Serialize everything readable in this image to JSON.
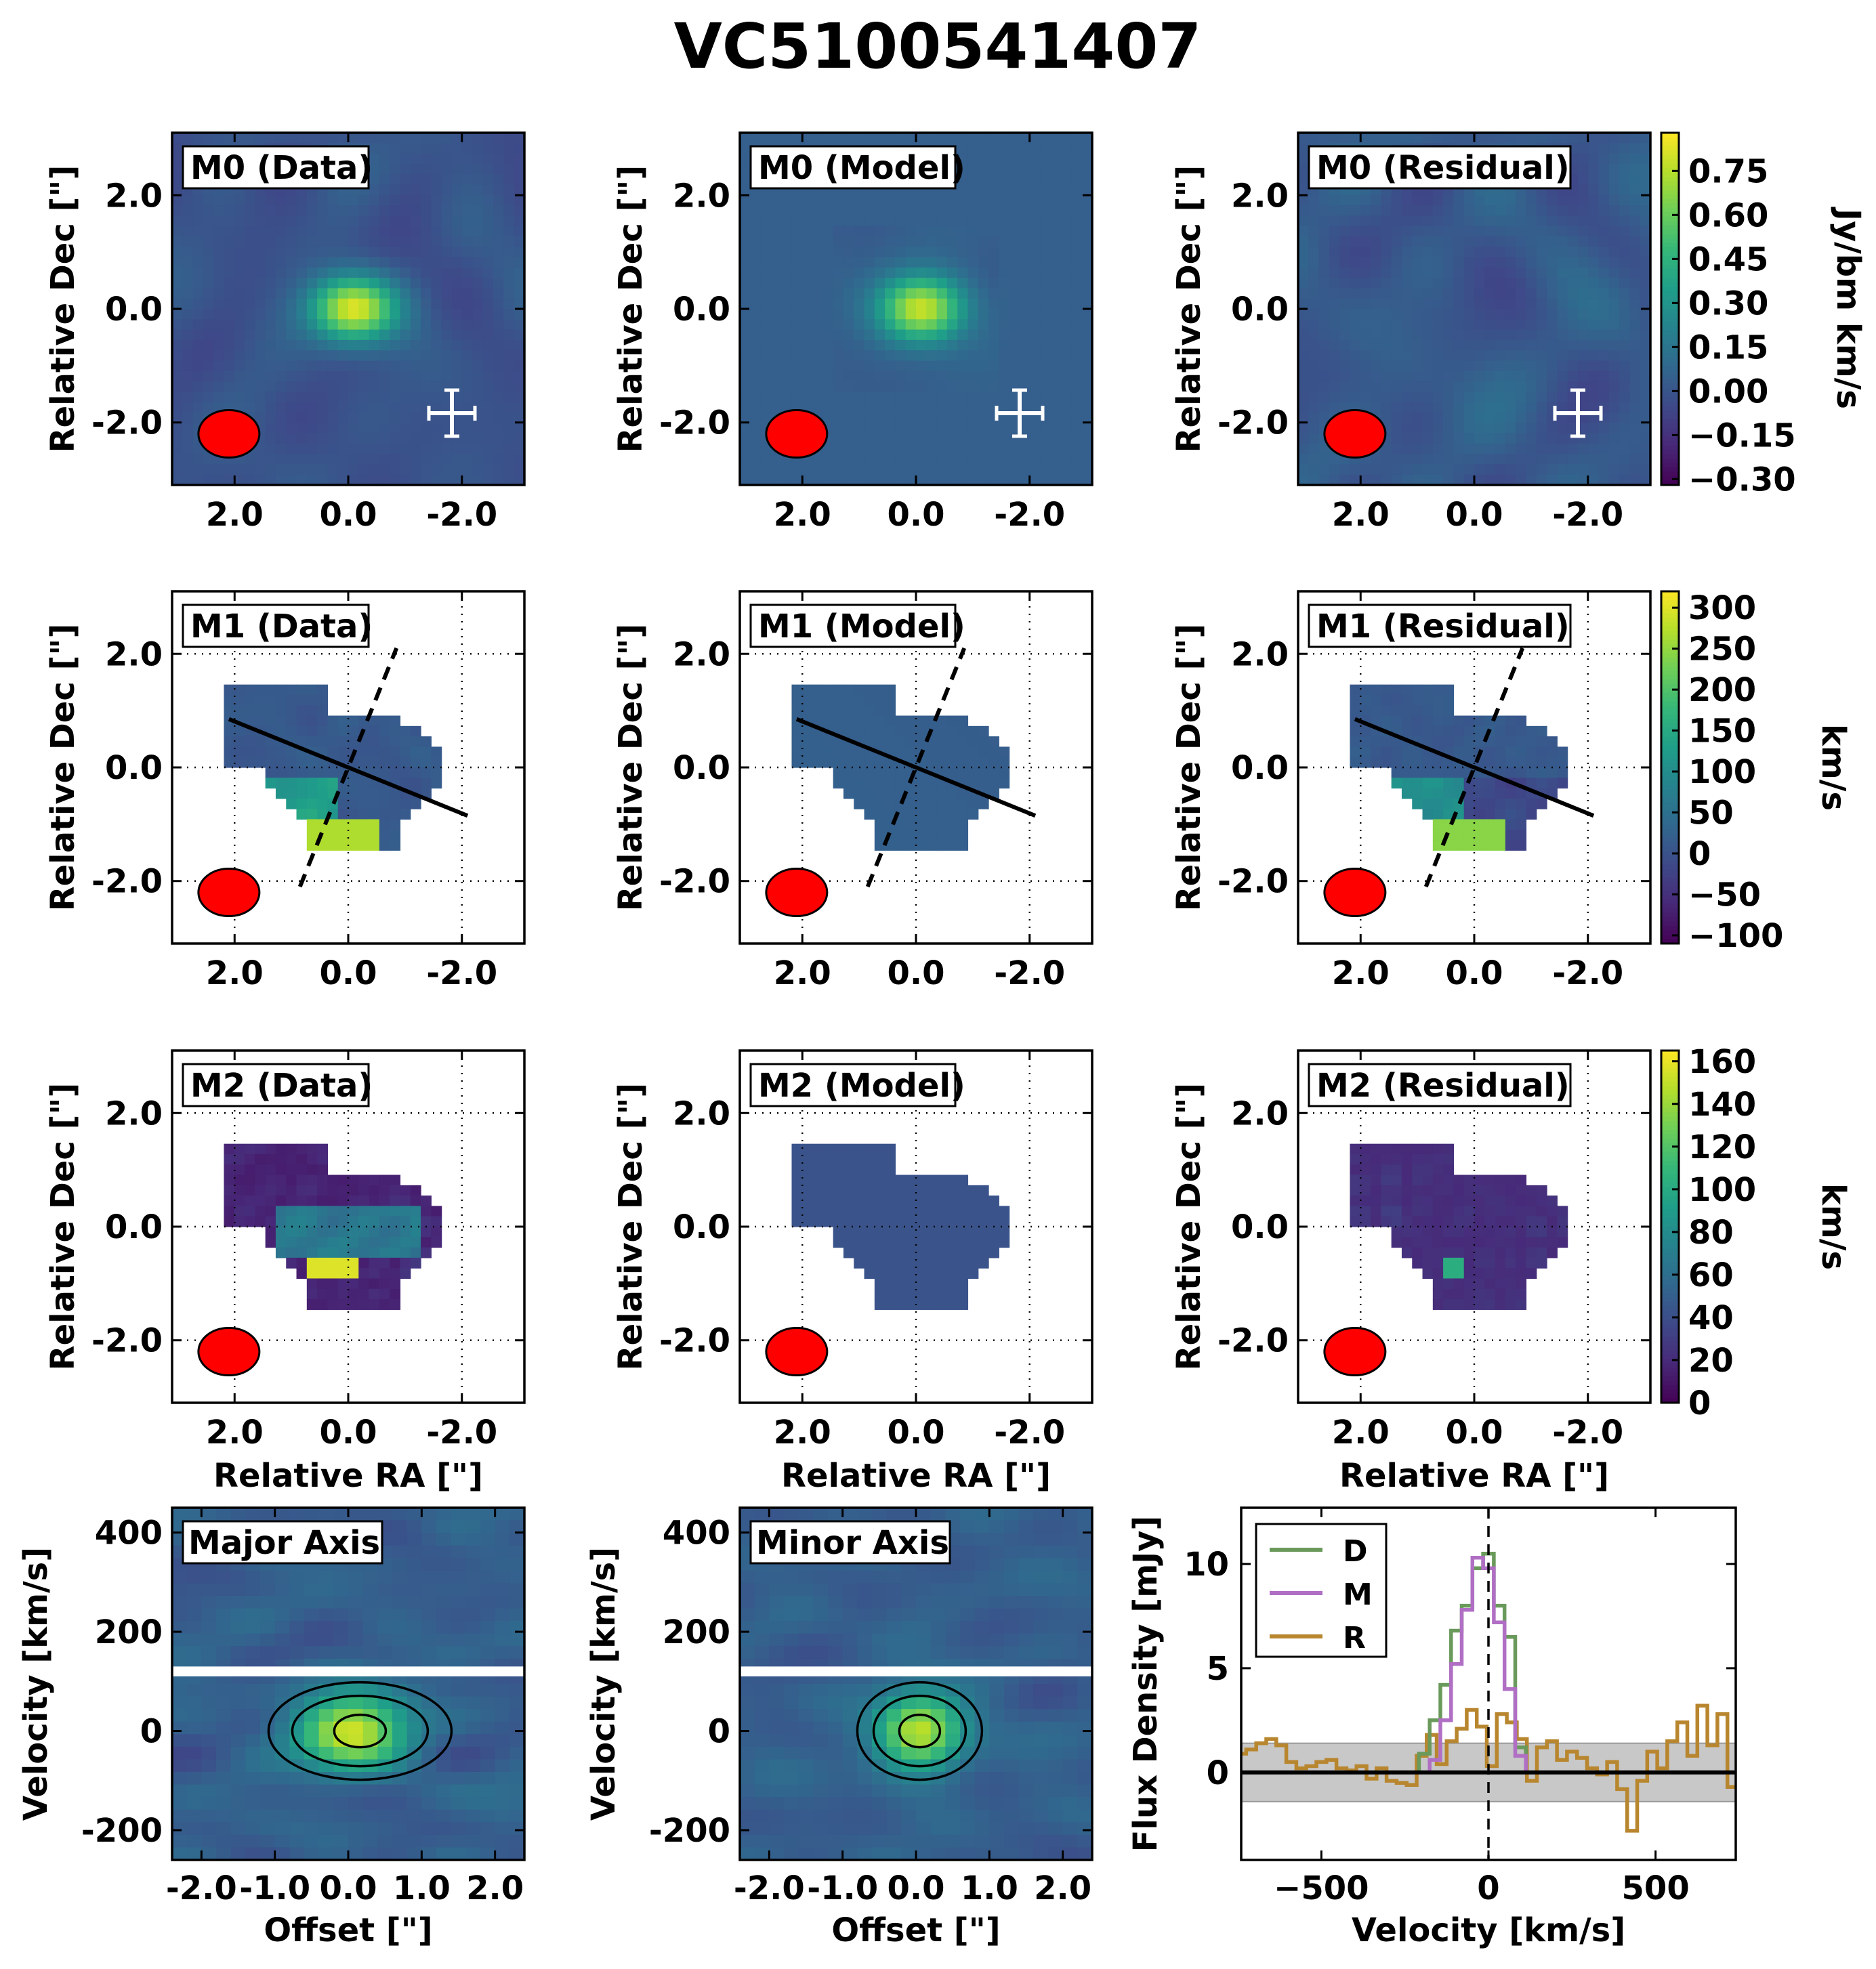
{
  "title": "VC5100541407",
  "colors": {
    "viridis": [
      "#440154",
      "#482878",
      "#3e4989",
      "#31688e",
      "#26828e",
      "#1f9e89",
      "#35b779",
      "#6ece58",
      "#b5de2b",
      "#fde725"
    ],
    "beam": "#ff0000",
    "white_band": "#ffffff",
    "spec_D": "#6a9a5b",
    "spec_M": "#b06fc4",
    "spec_R": "#b8862e",
    "noise_band": "#c8c8c8"
  },
  "chart_data": [
    {
      "type": "heatmap",
      "row": "M0",
      "panels": [
        "M0 (Data)",
        "M0 (Model)",
        "M0 (Residual)"
      ],
      "xlabel": "",
      "ylabel": "Relative Dec [\"]",
      "xlim": [
        3.1,
        -3.1
      ],
      "ylim": [
        -3.1,
        3.1
      ],
      "xticks": [
        2.0,
        0.0,
        -2.0
      ],
      "xtick_labels": [
        "2.0",
        "0.0",
        "-2.0"
      ],
      "yticks": [
        2.0,
        0.0,
        -2.0
      ],
      "ytick_labels": [
        "2.0",
        "0.0",
        "-2.0"
      ],
      "colorbar_label": "Jy/bm km/s",
      "colorbar_ticks": [
        0.75,
        0.6,
        0.45,
        0.3,
        0.15,
        0.0,
        -0.15,
        -0.3
      ],
      "colorbar_tick_labels": [
        "0.75",
        "0.60",
        "0.45",
        "0.30",
        "0.15",
        "0.00",
        "−0.15",
        "−0.30"
      ],
      "clim": [
        -0.32,
        0.88
      ],
      "source_peak": {
        "ra": -0.1,
        "dec": 0.0,
        "value": 0.85
      },
      "beam_center": {
        "ra": 2.1,
        "dec": -2.2
      }
    },
    {
      "type": "heatmap",
      "row": "M1",
      "panels": [
        "M1 (Data)",
        "M1 (Model)",
        "M1 (Residual)"
      ],
      "xlabel": "",
      "ylabel": "Relative Dec [\"]",
      "xlim": [
        3.1,
        -3.1
      ],
      "ylim": [
        -3.1,
        3.1
      ],
      "xticks": [
        2.0,
        0.0,
        -2.0
      ],
      "xtick_labels": [
        "2.0",
        "0.0",
        "-2.0"
      ],
      "yticks": [
        2.0,
        0.0,
        -2.0
      ],
      "ytick_labels": [
        "2.0",
        "0.0",
        "-2.0"
      ],
      "grid": true,
      "colorbar_label": "km/s",
      "colorbar_ticks": [
        300,
        250,
        200,
        150,
        100,
        50,
        0,
        -50,
        -100
      ],
      "colorbar_tick_labels": [
        "300",
        "250",
        "200",
        "150",
        "100",
        "50",
        "0",
        "−50",
        "−100"
      ],
      "clim": [
        -110,
        320
      ],
      "major_axis": [
        [
          2.1,
          0.85
        ],
        [
          -2.1,
          -0.85
        ]
      ],
      "minor_axis": [
        [
          0.85,
          -2.1
        ],
        [
          -0.85,
          2.1
        ]
      ]
    },
    {
      "type": "heatmap",
      "row": "M2",
      "panels": [
        "M2 (Data)",
        "M2 (Model)",
        "M2 (Residual)"
      ],
      "xlabel": "Relative RA [\"]",
      "ylabel": "Relative Dec [\"]",
      "xlim": [
        3.1,
        -3.1
      ],
      "ylim": [
        -3.1,
        3.1
      ],
      "xticks": [
        2.0,
        0.0,
        -2.0
      ],
      "xtick_labels": [
        "2.0",
        "0.0",
        "-2.0"
      ],
      "yticks": [
        2.0,
        0.0,
        -2.0
      ],
      "ytick_labels": [
        "2.0",
        "0.0",
        "-2.0"
      ],
      "grid": true,
      "colorbar_label": "km/s",
      "colorbar_ticks": [
        160,
        140,
        120,
        100,
        80,
        60,
        40,
        20,
        0
      ],
      "colorbar_tick_labels": [
        "160",
        "140",
        "120",
        "100",
        "80",
        "60",
        "40",
        "20",
        "0"
      ],
      "clim": [
        0,
        165
      ]
    },
    {
      "type": "heatmap",
      "row": "PV",
      "panels": [
        "Major Axis",
        "Minor Axis"
      ],
      "xlabel": "Offset [\"]",
      "ylabel": "Velocity [km/s]",
      "xlim": [
        -2.4,
        2.4
      ],
      "ylim": [
        -260,
        450
      ],
      "xticks": [
        -2.0,
        -1.0,
        0.0,
        1.0,
        2.0
      ],
      "xtick_labels": [
        "-2.0",
        "-1.0",
        "0.0",
        "1.0",
        "2.0"
      ],
      "yticks": [
        400,
        200,
        0,
        -200
      ],
      "ytick_labels": [
        "400",
        "200",
        "0",
        "-200"
      ],
      "white_band_velocity": [
        110,
        130
      ],
      "contour_levels": [
        "low",
        "mid",
        "high"
      ]
    },
    {
      "type": "line",
      "xlabel": "Velocity [km/s]",
      "ylabel": "Flux Density [mJy]",
      "xlim": [
        -740,
        740
      ],
      "ylim": [
        -4.2,
        12.7
      ],
      "xticks": [
        -500,
        0,
        500
      ],
      "xtick_labels": [
        "−500",
        "0",
        "500"
      ],
      "yticks": [
        10,
        5,
        0
      ],
      "ytick_labels": [
        "10",
        "5",
        "0"
      ],
      "noise_band": [
        -1.4,
        1.4
      ],
      "vline": 0,
      "hline": 0,
      "legend_position": "top-left",
      "series": [
        {
          "name": "D",
          "x": [
            -192,
            -160,
            -128,
            -96,
            -64,
            -32,
            0,
            32,
            64,
            96,
            128
          ],
          "values": [
            0.9,
            2.5,
            4.2,
            6.8,
            8.0,
            9.8,
            10.5,
            8.0,
            6.5,
            1.2,
            0.0
          ]
        },
        {
          "name": "M",
          "x": [
            -192,
            -160,
            -128,
            -96,
            -64,
            -32,
            0,
            32,
            64,
            96,
            128
          ],
          "values": [
            0.0,
            0.6,
            2.5,
            5.2,
            7.8,
            10.3,
            9.8,
            7.2,
            4.0,
            0.8,
            0.0
          ]
        },
        {
          "name": "R",
          "x": [
            -740,
            -710,
            -680,
            -650,
            -620,
            -590,
            -560,
            -530,
            -500,
            -470,
            -440,
            -410,
            -380,
            -350,
            -320,
            -290,
            -260,
            -230,
            -200,
            -170,
            -140,
            -110,
            -80,
            -50,
            -20,
            10,
            40,
            70,
            100,
            130,
            160,
            190,
            220,
            250,
            280,
            310,
            340,
            370,
            400,
            430,
            460,
            490,
            520,
            550,
            580,
            610,
            640,
            670,
            700,
            730
          ],
          "values": [
            0.9,
            1.1,
            1.4,
            1.6,
            1.3,
            0.5,
            0.2,
            0.3,
            0.5,
            0.6,
            0.2,
            0.1,
            0.3,
            -0.3,
            0.2,
            -0.4,
            -0.5,
            -0.6,
            0.8,
            1.8,
            0.4,
            1.5,
            2.1,
            3.0,
            2.2,
            0.3,
            2.8,
            2.4,
            1.6,
            -0.4,
            1.2,
            1.5,
            0.6,
            1.0,
            0.7,
            0.2,
            -0.1,
            0.5,
            -0.8,
            -2.8,
            -0.4,
            1.0,
            0.2,
            1.5,
            2.4,
            0.8,
            3.2,
            1.3,
            2.8,
            -0.7
          ]
        }
      ]
    }
  ],
  "legend": [
    {
      "label": "D"
    },
    {
      "label": "M"
    },
    {
      "label": "R"
    }
  ]
}
